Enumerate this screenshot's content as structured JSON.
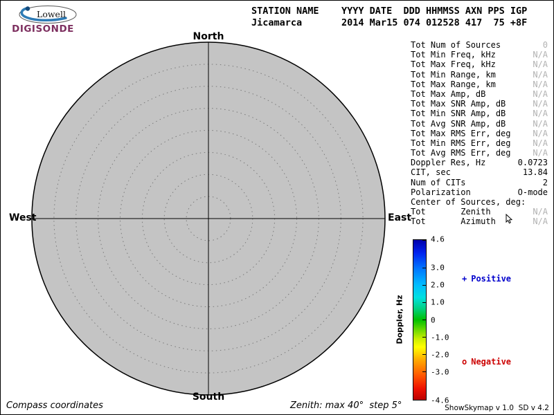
{
  "logo": {
    "name": "Lowell",
    "brand": "DIGISONDE"
  },
  "header": {
    "line1": "STATION NAME    YYYY DATE  DDD HHMMSS AXN PPS IGP",
    "line2": "Jicamarca       2014 Mar15 074 012528 417  75 +8F"
  },
  "compass": {
    "north": "North",
    "south": "South",
    "east": "East",
    "west": "West"
  },
  "stats": [
    {
      "label": "Tot Num of Sources",
      "value": "0",
      "muted": true
    },
    {
      "label": "Tot Min Freq, kHz",
      "value": "N/A",
      "muted": true
    },
    {
      "label": "Tot Max Freq, kHz",
      "value": "N/A",
      "muted": true
    },
    {
      "label": "Tot Min Range, km",
      "value": "N/A",
      "muted": true
    },
    {
      "label": "Tot Max Range, km",
      "value": "N/A",
      "muted": true
    },
    {
      "label": "Tot Max Amp, dB",
      "value": "N/A",
      "muted": true
    },
    {
      "label": "Tot Max SNR Amp, dB",
      "value": "N/A",
      "muted": true
    },
    {
      "label": "Tot Min SNR Amp, dB",
      "value": "N/A",
      "muted": true
    },
    {
      "label": "Tot Avg SNR Amp, dB",
      "value": "N/A",
      "muted": true
    },
    {
      "label": "Tot Max RMS Err, deg",
      "value": "N/A",
      "muted": true
    },
    {
      "label": "Tot Min RMS Err, deg",
      "value": "N/A",
      "muted": true
    },
    {
      "label": "Tot Avg RMS Err, deg",
      "value": "N/A",
      "muted": true
    },
    {
      "label": "Doppler Res, Hz",
      "value": "0.0723",
      "muted": false
    },
    {
      "label": "CIT, sec",
      "value": "13.84",
      "muted": false
    },
    {
      "label": "Num of CITs",
      "value": "2",
      "muted": false
    },
    {
      "label": "Polarization",
      "value": "O-mode",
      "muted": false
    },
    {
      "label": "Center of Sources, deg:",
      "value": "",
      "muted": false
    },
    {
      "label": "Tot       Zenith",
      "value": "N/A",
      "muted": true
    },
    {
      "label": "Tot       Azimuth",
      "value": "N/A",
      "muted": true
    }
  ],
  "colorbar": {
    "title": "Doppler, Hz",
    "tick_labels": [
      "4.6",
      "3.0",
      "2.0",
      "1.0",
      "0",
      "-1.0",
      "-2.0",
      "-3.0",
      "-4.6"
    ],
    "gradient": [
      {
        "c": "#0000aa",
        "p": 0
      },
      {
        "c": "#0022ee",
        "p": 8
      },
      {
        "c": "#0077ff",
        "p": 18
      },
      {
        "c": "#00bbff",
        "p": 28
      },
      {
        "c": "#00e0e0",
        "p": 36
      },
      {
        "c": "#00d080",
        "p": 43
      },
      {
        "c": "#00c000",
        "p": 50
      },
      {
        "c": "#66d800",
        "p": 56
      },
      {
        "c": "#ccee00",
        "p": 62
      },
      {
        "c": "#ffff00",
        "p": 67
      },
      {
        "c": "#ffaa00",
        "p": 75
      },
      {
        "c": "#ff5500",
        "p": 85
      },
      {
        "c": "#ee1100",
        "p": 93
      },
      {
        "c": "#bb0000",
        "p": 100
      }
    ]
  },
  "legend": {
    "positive": {
      "marker": "+",
      "label": "Positive",
      "color": "#0000cc"
    },
    "negative": {
      "marker": "o",
      "label": "Negative",
      "color": "#cc0000"
    }
  },
  "footer": {
    "left": "Compass coordinates",
    "center": "Zenith: max 40°  step 5°",
    "right": "ShowSkymap v 1.0  SD v 4.2"
  },
  "chart_data": {
    "type": "scatter",
    "projection": "polar",
    "coordinates": "compass",
    "title": "Skymap - Jicamarca 2014 Mar15 074 012528",
    "num_sources": 0,
    "points": [],
    "zenith_max_deg": 40,
    "zenith_step_deg": 5,
    "rings_deg": [
      5,
      10,
      15,
      20,
      25,
      30,
      35,
      40
    ],
    "colorbar": {
      "label": "Doppler, Hz",
      "min": -4.6,
      "max": 4.6,
      "ticks": [
        4.6,
        3.0,
        2.0,
        1.0,
        0,
        -1.0,
        -2.0,
        -3.0,
        -4.6
      ]
    },
    "legend": [
      {
        "marker": "+",
        "label": "Positive",
        "color": "#0000cc"
      },
      {
        "marker": "o",
        "label": "Negative",
        "color": "#cc0000"
      }
    ],
    "grid": "dotted concentric zenith rings with N-S / E-W crosshair"
  }
}
